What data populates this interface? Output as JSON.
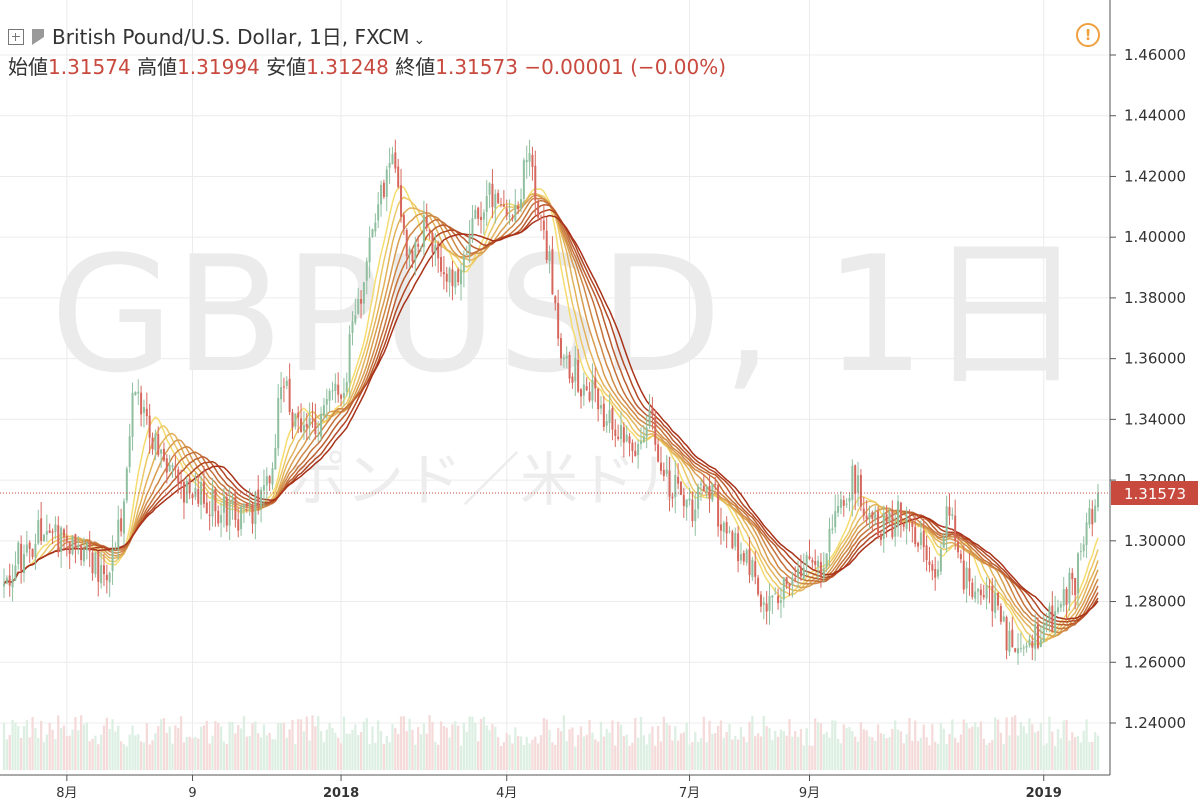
{
  "header": {
    "symbol_title": "British Pound/U.S. Dollar, 1日, FXCM",
    "open_label": "始値",
    "open_value": "1.31574",
    "high_label": "高値",
    "high_value": "1.31994",
    "low_label": "安値",
    "low_value": "1.31248",
    "close_label": "終値",
    "close_value": "1.31573",
    "change": "−0.00001 (−0.00%)"
  },
  "watermark": {
    "main": "GBPUSD, 1日",
    "sub": "ポンド／米ドル"
  },
  "price_label": "1.31573",
  "colors": {
    "up": "#8fbf9f",
    "down": "#d6675d",
    "ma_fast": "#f5dc70",
    "ma_slow": "#a83219",
    "price_line": "#c8493e"
  },
  "chart_data": {
    "type": "candlestick",
    "ylim": [
      1.23,
      1.47
    ],
    "y_ticks": [
      "1.24000",
      "1.26000",
      "1.28000",
      "1.30000",
      "1.32000",
      "1.34000",
      "1.36000",
      "1.38000",
      "1.40000",
      "1.42000",
      "1.44000",
      "1.46000"
    ],
    "x_ticks": [
      {
        "label": "8月",
        "index": 22
      },
      {
        "label": "9",
        "index": 66
      },
      {
        "label": "2018",
        "index": 118
      },
      {
        "label": "4月",
        "index": 176
      },
      {
        "label": "7月",
        "index": 240
      },
      {
        "label": "9月",
        "index": 282
      },
      {
        "label": "2019",
        "index": 364
      }
    ],
    "n_bars": 384,
    "last_close": 1.31573,
    "price_anchors": [
      [
        0,
        1.285
      ],
      [
        6,
        1.295
      ],
      [
        14,
        1.305
      ],
      [
        22,
        1.3
      ],
      [
        30,
        1.295
      ],
      [
        36,
        1.288
      ],
      [
        40,
        1.305
      ],
      [
        46,
        1.35
      ],
      [
        52,
        1.335
      ],
      [
        58,
        1.32
      ],
      [
        66,
        1.315
      ],
      [
        78,
        1.31
      ],
      [
        86,
        1.3075
      ],
      [
        92,
        1.32
      ],
      [
        98,
        1.35
      ],
      [
        104,
        1.335
      ],
      [
        110,
        1.34
      ],
      [
        118,
        1.35
      ],
      [
        124,
        1.38
      ],
      [
        130,
        1.41
      ],
      [
        136,
        1.425
      ],
      [
        142,
        1.395
      ],
      [
        148,
        1.405
      ],
      [
        154,
        1.385
      ],
      [
        160,
        1.39
      ],
      [
        166,
        1.405
      ],
      [
        172,
        1.415
      ],
      [
        178,
        1.41
      ],
      [
        184,
        1.425
      ],
      [
        190,
        1.395
      ],
      [
        196,
        1.36
      ],
      [
        204,
        1.35
      ],
      [
        212,
        1.34
      ],
      [
        220,
        1.33
      ],
      [
        226,
        1.34
      ],
      [
        232,
        1.32
      ],
      [
        240,
        1.31
      ],
      [
        246,
        1.32
      ],
      [
        254,
        1.3
      ],
      [
        260,
        1.295
      ],
      [
        266,
        1.275
      ],
      [
        272,
        1.285
      ],
      [
        280,
        1.29
      ],
      [
        286,
        1.29
      ],
      [
        292,
        1.31
      ],
      [
        298,
        1.32
      ],
      [
        304,
        1.305
      ],
      [
        310,
        1.305
      ],
      [
        314,
        1.31
      ],
      [
        320,
        1.3
      ],
      [
        326,
        1.29
      ],
      [
        330,
        1.31
      ],
      [
        338,
        1.285
      ],
      [
        344,
        1.285
      ],
      [
        350,
        1.27
      ],
      [
        356,
        1.26
      ],
      [
        362,
        1.27
      ],
      [
        368,
        1.275
      ],
      [
        374,
        1.285
      ],
      [
        378,
        1.3
      ],
      [
        383,
        1.3157
      ]
    ],
    "ma_periods": [
      10,
      13,
      16,
      19,
      22,
      25,
      28,
      31,
      34
    ]
  }
}
